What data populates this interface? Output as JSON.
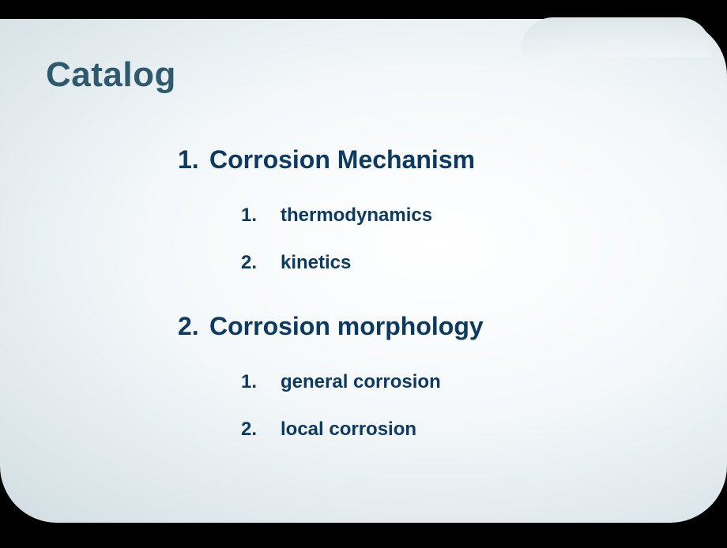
{
  "slide": {
    "title": "Catalog",
    "title_color": "#2f5a6d",
    "title_fontsize": 44,
    "text_color": "#0c3a63",
    "section_fontsize": 32,
    "sub_fontsize": 24,
    "background_outer": "#000000",
    "card_gradient_stops": [
      "#ffffff",
      "#f4f8fa",
      "#d6e1e6",
      "#a8bcc5",
      "#7a929e"
    ],
    "corner_radius": 72,
    "sections": [
      {
        "num": "1.",
        "title": "Corrosion Mechanism",
        "items": [
          {
            "num": "1.",
            "label": "thermodynamics"
          },
          {
            "num": "2.",
            "label": "kinetics"
          }
        ]
      },
      {
        "num": "2.",
        "title": "Corrosion  morphology",
        "items": [
          {
            "num": "1.",
            "label": "general corrosion"
          },
          {
            "num": "2.",
            "label": "local corrosion"
          }
        ]
      }
    ]
  }
}
